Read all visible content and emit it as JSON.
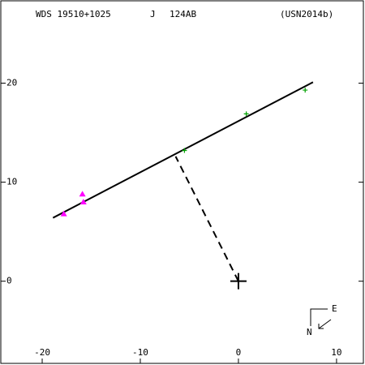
{
  "chart_data": {
    "type": "orbit",
    "header": [
      "WDS 19510+1025",
      "J",
      "124AB",
      "(USN2014b)"
    ],
    "xlim": [
      -24.3,
      12.9
    ],
    "ylim": [
      -8.3,
      28.4
    ],
    "xticks": [
      -20,
      -10,
      0,
      10
    ],
    "yticks": [
      0,
      10,
      20
    ],
    "series": [
      {
        "marker": "triangle",
        "color": "#ff00ff",
        "x": [
          -15.9,
          -15.8,
          -17.8
        ],
        "y": [
          8.8,
          8.0,
          6.8
        ]
      },
      {
        "marker": "plus",
        "color": "#00a000",
        "x": [
          -5.5,
          0.8,
          6.8
        ],
        "y": [
          13.2,
          16.9,
          19.3
        ]
      }
    ],
    "fit_line": {
      "x": [
        -18.9,
        7.6
      ],
      "y": [
        6.4,
        20.1
      ]
    },
    "node_line": {
      "x": [
        0,
        -6.4
      ],
      "y": [
        0,
        12.6
      ]
    },
    "origin": {
      "x": 0,
      "y": 0
    },
    "compass": {
      "east": "E",
      "north": "N"
    }
  }
}
